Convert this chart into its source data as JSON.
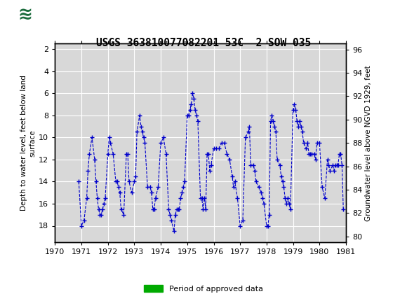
{
  "title": "USGS 363810077082201 53C  2 SOW 035",
  "ylabel_left": "Depth to water level, feet below land\nsurface",
  "ylabel_right": "Groundwater level above NGVD 1929, feet",
  "header_color": "#1a6b3c",
  "plot_bg": "#d8d8d8",
  "line_color": "#0000cc",
  "ylim_left": [
    19.5,
    1.5
  ],
  "ylim_right": [
    79.5,
    96.5
  ],
  "xlim": [
    1970,
    1981
  ],
  "yticks_left": [
    2,
    4,
    6,
    8,
    10,
    12,
    14,
    16,
    18
  ],
  "yticks_right": [
    80,
    82,
    84,
    86,
    88,
    90,
    92,
    94,
    96
  ],
  "xticks": [
    1970,
    1971,
    1972,
    1973,
    1974,
    1975,
    1976,
    1977,
    1978,
    1979,
    1980,
    1981
  ],
  "approved_bar_color": "#00aa00",
  "approved_x_start": 1970.8,
  "approved_x_end": 1981.0,
  "legend_label": "Period of approved data",
  "x_data": [
    1970.9,
    1971.0,
    1971.1,
    1971.2,
    1971.25,
    1971.3,
    1971.4,
    1971.5,
    1971.55,
    1971.6,
    1971.65,
    1971.7,
    1971.75,
    1971.8,
    1971.85,
    1971.9,
    1972.0,
    1972.05,
    1972.1,
    1972.2,
    1972.3,
    1972.35,
    1972.4,
    1972.45,
    1972.5,
    1972.6,
    1972.7,
    1972.75,
    1972.8,
    1972.9,
    1973.0,
    1973.05,
    1973.1,
    1973.2,
    1973.25,
    1973.3,
    1973.35,
    1973.4,
    1973.5,
    1973.6,
    1973.65,
    1973.7,
    1973.75,
    1973.8,
    1973.9,
    1974.0,
    1974.1,
    1974.2,
    1974.3,
    1974.35,
    1974.4,
    1974.5,
    1974.55,
    1974.6,
    1974.65,
    1974.7,
    1974.75,
    1974.8,
    1974.85,
    1974.9,
    1975.0,
    1975.05,
    1975.1,
    1975.15,
    1975.2,
    1975.25,
    1975.3,
    1975.35,
    1975.4,
    1975.5,
    1975.55,
    1975.6,
    1975.65,
    1975.7,
    1975.75,
    1975.8,
    1975.85,
    1975.9,
    1976.0,
    1976.1,
    1976.2,
    1976.3,
    1976.4,
    1976.5,
    1976.6,
    1976.7,
    1976.75,
    1976.8,
    1976.9,
    1977.0,
    1977.1,
    1977.2,
    1977.3,
    1977.35,
    1977.4,
    1977.5,
    1977.55,
    1977.6,
    1977.7,
    1977.8,
    1977.85,
    1977.9,
    1978.0,
    1978.05,
    1978.1,
    1978.15,
    1978.2,
    1978.25,
    1978.3,
    1978.35,
    1978.4,
    1978.5,
    1978.55,
    1978.6,
    1978.65,
    1978.7,
    1978.75,
    1978.8,
    1978.85,
    1978.9,
    1979.0,
    1979.05,
    1979.1,
    1979.15,
    1979.2,
    1979.25,
    1979.3,
    1979.35,
    1979.4,
    1979.5,
    1979.55,
    1979.6,
    1979.65,
    1979.7,
    1979.8,
    1979.85,
    1979.9,
    1980.0,
    1980.1,
    1980.2,
    1980.3,
    1980.35,
    1980.4,
    1980.5,
    1980.55,
    1980.6,
    1980.65,
    1980.7,
    1980.75,
    1980.8,
    1980.85,
    1980.9
  ],
  "y_data": [
    14.0,
    18.0,
    17.5,
    15.5,
    13.0,
    11.5,
    10.0,
    12.0,
    14.0,
    15.5,
    16.5,
    17.0,
    17.0,
    16.5,
    16.0,
    15.5,
    11.5,
    10.0,
    10.5,
    11.5,
    14.0,
    14.0,
    14.5,
    15.0,
    16.5,
    17.0,
    11.5,
    11.5,
    14.0,
    15.0,
    14.0,
    13.5,
    9.5,
    8.0,
    9.0,
    9.5,
    10.0,
    10.5,
    14.5,
    14.5,
    15.0,
    16.5,
    16.5,
    15.5,
    14.5,
    10.5,
    10.0,
    11.5,
    16.5,
    17.0,
    17.5,
    18.5,
    17.0,
    16.5,
    16.5,
    16.5,
    15.5,
    15.0,
    14.5,
    14.0,
    8.0,
    8.0,
    7.5,
    7.0,
    6.0,
    6.5,
    7.5,
    8.0,
    8.5,
    15.5,
    15.5,
    16.5,
    15.5,
    16.5,
    11.5,
    11.5,
    13.0,
    12.5,
    11.0,
    11.0,
    11.0,
    10.5,
    10.5,
    11.5,
    12.0,
    13.5,
    14.5,
    14.0,
    15.5,
    18.0,
    17.5,
    10.0,
    9.5,
    9.0,
    12.5,
    12.5,
    13.0,
    14.0,
    14.5,
    15.0,
    15.5,
    16.0,
    18.0,
    18.0,
    17.0,
    8.5,
    8.0,
    8.5,
    9.0,
    9.5,
    12.0,
    12.5,
    13.5,
    14.0,
    14.5,
    15.5,
    16.0,
    15.5,
    16.0,
    16.5,
    7.5,
    7.0,
    7.5,
    8.5,
    9.0,
    8.5,
    9.0,
    9.5,
    10.5,
    11.0,
    10.5,
    11.5,
    11.5,
    11.5,
    11.5,
    12.0,
    10.5,
    10.5,
    14.5,
    15.5,
    12.0,
    12.5,
    13.0,
    12.5,
    13.0,
    12.5,
    12.5,
    12.5,
    11.5,
    11.5,
    12.5,
    16.5
  ]
}
